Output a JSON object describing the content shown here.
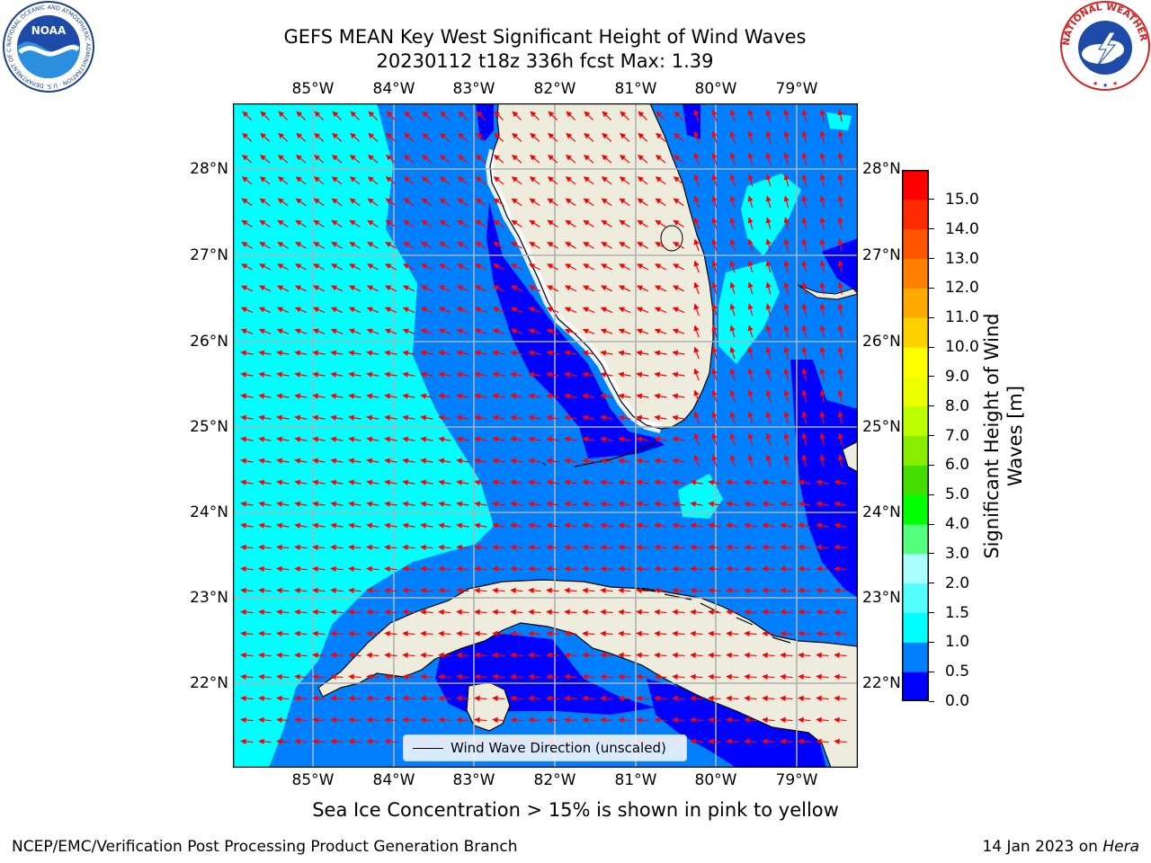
{
  "header": {
    "title_line1": "GEFS MEAN Key West Significant Height of Wind Waves",
    "title_line2": "20230112 t18z 336h fcst   Max: 1.39"
  },
  "logos": {
    "left": {
      "name": "NOAA",
      "ring_text": "NATIONAL OCEANIC AND ATMOSPHERIC ADMINISTRATION · U.S. DEPARTMENT OF COMMERCE",
      "center_text": "NOAA"
    },
    "right": {
      "name": "National Weather Service",
      "ring_text": "NATIONAL WEATHER SERVICE"
    }
  },
  "map": {
    "lon_labels": [
      "85°W",
      "84°W",
      "83°W",
      "82°W",
      "81°W",
      "80°W",
      "79°W"
    ],
    "lat_labels": [
      "28°N",
      "27°N",
      "26°N",
      "25°N",
      "24°N",
      "23°N",
      "22°N"
    ],
    "lon_range": [
      -86.0,
      -78.3
    ],
    "lat_range": [
      21.0,
      28.8
    ],
    "legend_label": "Wind Wave Direction (unscaled)",
    "arrow_color": "#ff0000",
    "land_color": "#eeeddd",
    "coast_color": "#000000"
  },
  "colorbar": {
    "title": "Significant Height of Wind Waves [m]",
    "tick_labels": [
      "0.0",
      "0.5",
      "1.0",
      "1.5",
      "2.0",
      "3.0",
      "4.0",
      "5.0",
      "6.0",
      "7.0",
      "8.0",
      "9.0",
      "10.0",
      "11.0",
      "12.0",
      "13.0",
      "14.0",
      "15.0"
    ],
    "colors": [
      "#0000ff",
      "#0080ff",
      "#00ffff",
      "#55ffff",
      "#aaffff",
      "#55ff80",
      "#00ff00",
      "#44dd00",
      "#88ee00",
      "#bbff00",
      "#eeff00",
      "#ffff00",
      "#ffd000",
      "#ffaa00",
      "#ff8000",
      "#ff5500",
      "#ff2a00",
      "#ff0000"
    ]
  },
  "caption": "Sea Ice Concentration > 15% is shown in pink to yellow",
  "footer": {
    "left": "NCEP/EMC/Verification Post Processing Product Generation Branch",
    "right_prefix": "14 Jan 2023 on ",
    "right_italic": "Hera"
  }
}
